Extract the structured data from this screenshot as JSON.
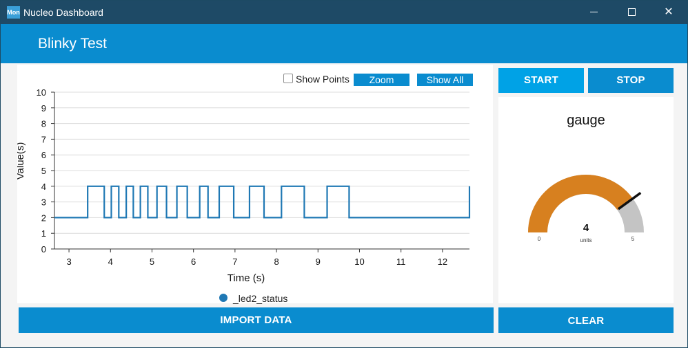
{
  "window": {
    "app_icon_text": "Mon",
    "title": "Nucleo Dashboard"
  },
  "header": {
    "title": "Blinky Test"
  },
  "chart_controls": {
    "show_points_label": "Show Points",
    "show_points_checked": false,
    "zoom_label": "Zoom",
    "show_all_label": "Show All"
  },
  "buttons": {
    "start": "START",
    "stop": "STOP",
    "import": "IMPORT DATA",
    "clear": "CLEAR"
  },
  "gauge": {
    "title": "gauge",
    "value": 4,
    "value_text": "4",
    "units": "units",
    "min": 0,
    "max": 5,
    "min_label": "0",
    "max_label": "5",
    "fill_color": "#d7801f",
    "track_color": "#c4c4c4",
    "needle_color": "#111111"
  },
  "chart_data": {
    "type": "line",
    "xlabel": "Time (s)",
    "ylabel": "Value(s)",
    "xlim": [
      2.65,
      12.65
    ],
    "ylim": [
      0,
      10
    ],
    "xticks": [
      "3",
      "4",
      "5",
      "6",
      "7",
      "8",
      "9",
      "10",
      "11",
      "12"
    ],
    "yticks": [
      "0",
      "1",
      "2",
      "3",
      "4",
      "5",
      "6",
      "7",
      "8",
      "9",
      "10"
    ],
    "grid": true,
    "legend": "bottom-center",
    "line_color": "#1f78b4",
    "series": [
      {
        "name": "_led2_status",
        "step": true,
        "x": [
          2.65,
          3.45,
          3.85,
          4.02,
          4.2,
          4.38,
          4.55,
          4.72,
          4.9,
          5.12,
          5.35,
          5.6,
          5.85,
          6.15,
          6.35,
          6.62,
          6.97,
          7.35,
          7.7,
          8.12,
          8.67,
          9.22,
          9.75,
          12.65
        ],
        "y": [
          2,
          4,
          2,
          4,
          2,
          4,
          2,
          4,
          2,
          4,
          2,
          4,
          2,
          4,
          2,
          4,
          2,
          4,
          2,
          4,
          2,
          4,
          2,
          4
        ]
      }
    ]
  }
}
